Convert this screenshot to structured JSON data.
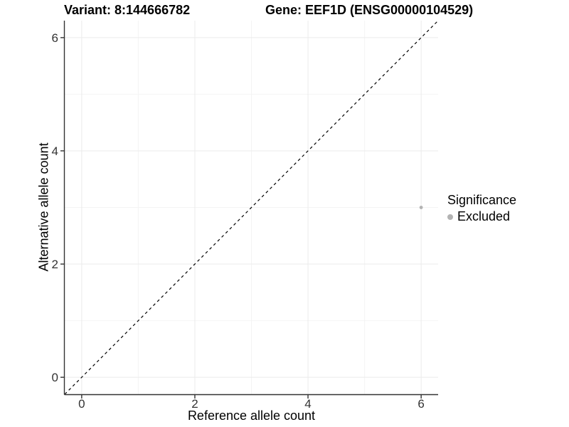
{
  "chart_data": {
    "type": "scatter",
    "title_left": "Variant: 8:144666782",
    "title_right": "Gene: EEF1D (ENSG00000104529)",
    "xlabel": "Reference allele count",
    "ylabel": "Alternative allele count",
    "xlim": [
      -0.3,
      6.3
    ],
    "ylim": [
      -0.3,
      6.3
    ],
    "x_ticks": [
      0,
      2,
      4,
      6
    ],
    "y_ticks": [
      0,
      2,
      4,
      6
    ],
    "x_minor_ticks": [
      1,
      3,
      5
    ],
    "y_minor_ticks": [
      1,
      3,
      5
    ],
    "grid": "on",
    "series": [
      {
        "name": "Excluded",
        "color": "#b3b3b3",
        "points": [
          {
            "x": 6,
            "y": 3
          }
        ]
      }
    ],
    "reference_line": {
      "kind": "identity",
      "from": [
        -0.3,
        -0.3
      ],
      "to": [
        6.3,
        6.3
      ],
      "style": "dashed",
      "color": "#000000"
    },
    "legend": {
      "title": "Significance",
      "position": "right",
      "items": [
        {
          "label": "Excluded",
          "color": "#b3b3b3"
        }
      ]
    },
    "colors": {
      "background": "#ffffff",
      "grid_major": "#ebebeb",
      "grid_minor": "#f4f4f4",
      "axis_line": "#333333",
      "tick_text": "#333333",
      "title_text": "#000000"
    }
  }
}
